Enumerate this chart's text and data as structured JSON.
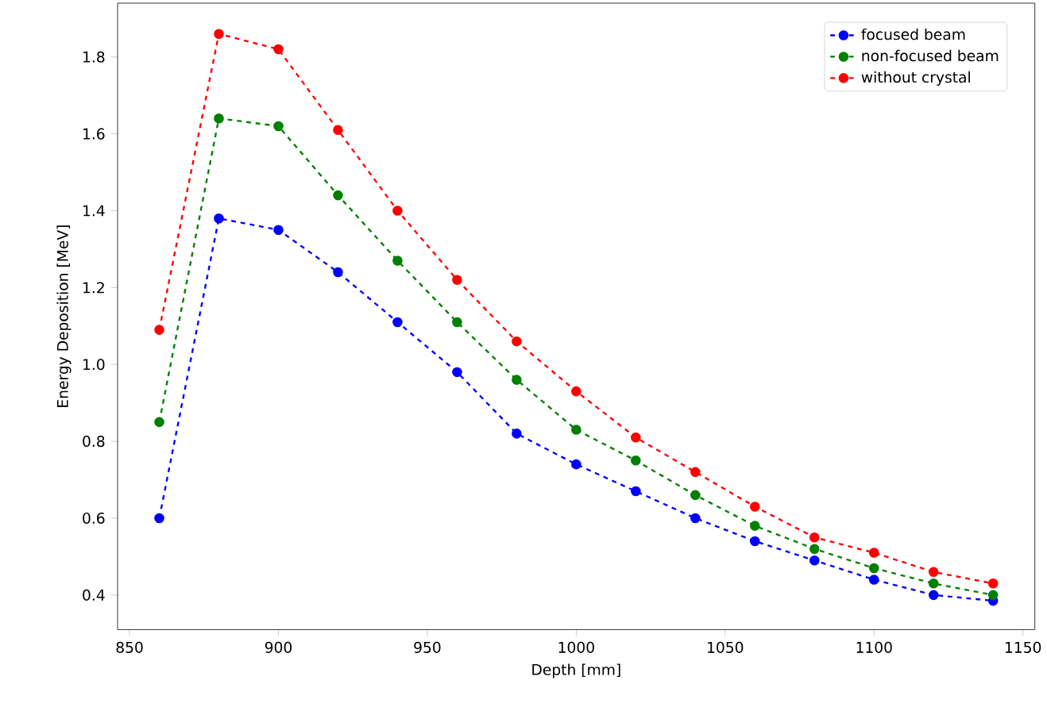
{
  "chart_data": {
    "type": "line",
    "xlabel": "Depth [mm]",
    "ylabel": "Energy Deposition [MeV]",
    "x": [
      860,
      880,
      900,
      920,
      940,
      960,
      980,
      1000,
      1020,
      1040,
      1060,
      1080,
      1100,
      1120,
      1140
    ],
    "series": [
      {
        "name": "focused beam",
        "color": "#0000ff",
        "values": [
          0.6,
          1.38,
          1.35,
          1.24,
          1.11,
          0.98,
          0.82,
          0.74,
          0.67,
          0.6,
          0.54,
          0.49,
          0.44,
          0.4,
          0.385
        ]
      },
      {
        "name": "non-focused beam",
        "color": "#008000",
        "values": [
          0.85,
          1.64,
          1.62,
          1.44,
          1.27,
          1.11,
          0.96,
          0.83,
          0.75,
          0.66,
          0.58,
          0.52,
          0.47,
          0.43,
          0.4
        ]
      },
      {
        "name": "without crystal",
        "color": "#ff0000",
        "values": [
          1.09,
          1.86,
          1.82,
          1.61,
          1.4,
          1.22,
          1.06,
          0.93,
          0.81,
          0.72,
          0.63,
          0.55,
          0.51,
          0.46,
          0.43
        ]
      }
    ],
    "xlim": [
      846,
      1154
    ],
    "ylim": [
      0.31,
      1.94
    ],
    "xticks": [
      850,
      900,
      950,
      1000,
      1050,
      1100,
      1150
    ],
    "yticks": [
      {
        "value": 0.4,
        "label": "0.4"
      },
      {
        "value": 0.6,
        "label": "0.6"
      },
      {
        "value": 0.8,
        "label": "0.8"
      },
      {
        "value": 1.0,
        "label": "1.0"
      },
      {
        "value": 1.2,
        "label": "1.2"
      },
      {
        "value": 1.4,
        "label": "1.4"
      },
      {
        "value": 1.6,
        "label": "1.6"
      },
      {
        "value": 1.8,
        "label": "1.8"
      }
    ],
    "marker": "circle",
    "line_style": "dashed",
    "legend": "top right",
    "grid": false
  }
}
